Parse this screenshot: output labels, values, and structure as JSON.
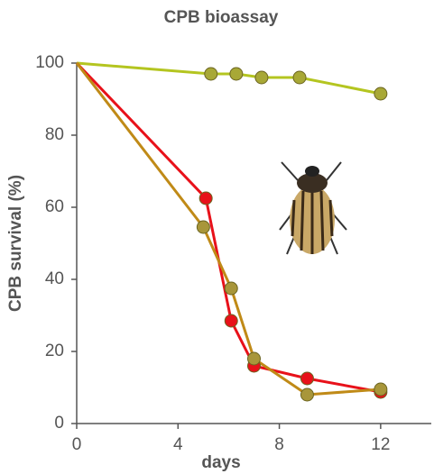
{
  "chart_data": {
    "type": "line",
    "title": "CPB bioassay",
    "x_label": "days",
    "y_label": "CPB survival (%)",
    "xlim": [
      0,
      14
    ],
    "xticks": [
      0,
      4,
      8,
      12
    ],
    "ylim": [
      0,
      100
    ],
    "yticks": [
      0,
      20,
      40,
      60,
      80,
      100
    ],
    "series": [
      {
        "color": "#b4c520",
        "marker_color": "#a8a836",
        "x": [
          0,
          5.3,
          6.3,
          7.3,
          8.8,
          12
        ],
        "values": [
          100,
          97,
          97,
          96,
          96,
          91.5
        ]
      },
      {
        "color": "#e8111a",
        "marker_color": "#e8111a",
        "x": [
          0,
          5.1,
          6.1,
          7,
          9.1,
          12
        ],
        "values": [
          100,
          62.5,
          28.5,
          16,
          12.5,
          8.75
        ]
      },
      {
        "color": "#c08a17",
        "marker_color": "#a8963a",
        "x": [
          0,
          5,
          6.1,
          7,
          9.1,
          12
        ],
        "values": [
          100,
          54.5,
          37.5,
          18,
          8,
          9.5
        ]
      }
    ]
  }
}
